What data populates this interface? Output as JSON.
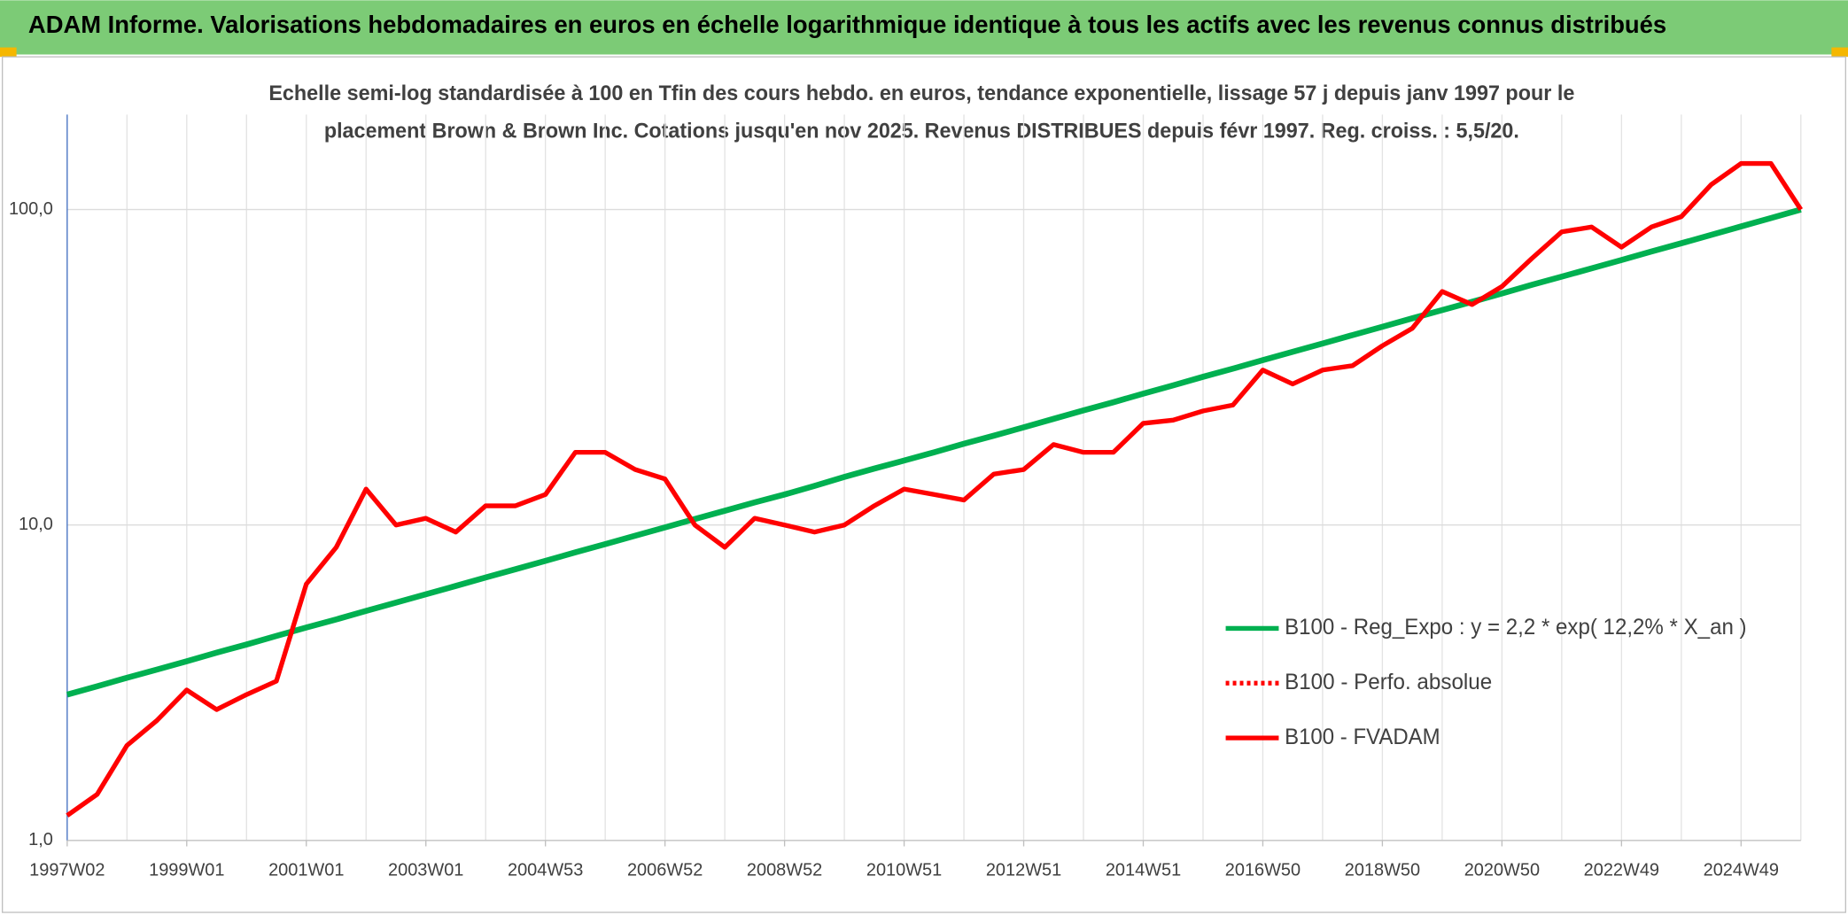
{
  "chart_data": {
    "type": "line",
    "header": "ADAM Informe. Valorisations hebdomadaires en euros en échelle logarithmique identique à tous les actifs avec les revenus connus distribués",
    "subtitle": [
      "Echelle semi-log standardisée à 100 en Tfin des cours hebdo. en euros, tendance exponentielle, lissage 57 j depuis janv 1997 pour le",
      "placement Brown & Brown Inc. Cotations jusqu'en nov 2025. Revenus DISTRIBUES depuis févr 1997. Reg. croiss. : 5,5/20."
    ],
    "categories": [
      "1997W02",
      null,
      null,
      null,
      "1999W01",
      null,
      null,
      null,
      "2001W01",
      null,
      null,
      null,
      "2003W01",
      null,
      null,
      null,
      "2004W53",
      null,
      null,
      null,
      "2006W52",
      null,
      null,
      null,
      "2008W52",
      null,
      null,
      null,
      "2010W51",
      null,
      null,
      null,
      "2012W51",
      null,
      null,
      null,
      "2014W51",
      null,
      null,
      null,
      "2016W50",
      null,
      null,
      null,
      "2018W50",
      null,
      null,
      null,
      "2020W50",
      null,
      null,
      null,
      "2022W49",
      null,
      null,
      null,
      "2024W49",
      null,
      null
    ],
    "series": [
      {
        "name": "B100 - Reg_Expo : y = 2,2 * exp( 12,2% *  X_an )",
        "color": "#00b050",
        "style": "solid",
        "values": [
          2.9,
          3.08,
          3.28,
          3.48,
          3.7,
          3.94,
          4.18,
          4.45,
          4.73,
          5.02,
          5.34,
          5.68,
          6.03,
          6.41,
          6.82,
          7.24,
          7.7,
          8.19,
          8.7,
          9.25,
          9.83,
          10.45,
          11.1,
          11.8,
          12.5,
          13.3,
          14.2,
          15.1,
          16.0,
          17.0,
          18.1,
          19.2,
          20.4,
          21.7,
          23.1,
          24.5,
          26.1,
          27.7,
          29.5,
          31.3,
          33.3,
          35.4,
          37.6,
          40.0,
          42.5,
          45.2,
          48.0,
          51.0,
          54.2,
          57.7,
          61.3,
          65.1,
          69.2,
          73.6,
          78.2,
          83.1,
          88.4,
          94.0,
          100
        ]
      },
      {
        "name": "B100 - Perfo. absolue",
        "color": "#ff0000",
        "style": "dotted"
      },
      {
        "name": "B100 - FVADAM",
        "color": "#ff0000",
        "style": "solid",
        "values": [
          1.2,
          1.4,
          2.0,
          2.4,
          3.0,
          2.6,
          2.9,
          3.2,
          6.5,
          8.5,
          13,
          10,
          10.5,
          9.5,
          11.5,
          11.5,
          12.5,
          17,
          17,
          15,
          14,
          10,
          8.5,
          10.5,
          10,
          9.5,
          10,
          11.5,
          13,
          12.5,
          12,
          14.5,
          15,
          18,
          17,
          17,
          21,
          21.5,
          23,
          24,
          31,
          28,
          31,
          32,
          37,
          42,
          55,
          50,
          57,
          70,
          85,
          88,
          76,
          88,
          95,
          120,
          140,
          140,
          100
        ]
      }
    ],
    "log_scale": true,
    "ylim": [
      1,
      200
    ],
    "yticks": [
      {
        "value": 1,
        "label": "1,0"
      },
      {
        "value": 10,
        "label": "10,0"
      },
      {
        "value": 100,
        "label": "100,0"
      }
    ],
    "grid": true,
    "legend": "lower right"
  }
}
